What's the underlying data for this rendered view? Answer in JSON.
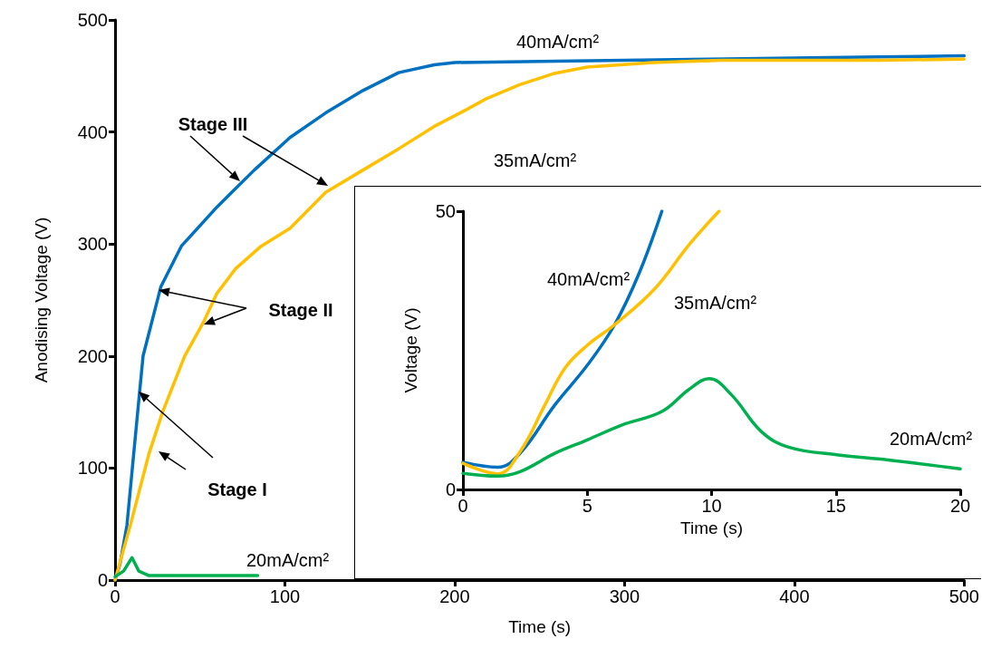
{
  "chart_data": [
    {
      "type": "line",
      "xlabel": "Time (s)",
      "ylabel": "Anodising Voltage (V)",
      "xlim": [
        0,
        500
      ],
      "xticks": [
        0,
        100,
        200,
        300,
        400,
        500
      ],
      "ylim": [
        0,
        500
      ],
      "yticks": [
        0,
        100,
        200,
        300,
        400,
        500
      ],
      "grid": false,
      "legend": false,
      "marker": "none",
      "line_style": "solid",
      "annotations": [
        "Stage III",
        "Stage II",
        "Stage I"
      ],
      "series": [
        {
          "name": "40mA/cm²",
          "color": "#0070c0",
          "x": [
            0,
            3,
            7,
            10,
            14.4,
            16.5,
            27,
            39,
            60,
            82,
            103,
            124,
            146,
            167,
            188,
            200,
            250,
            300,
            350,
            400,
            450,
            500
          ],
          "values": [
            0,
            15,
            49,
            97,
            167,
            200,
            262,
            298,
            333,
            366,
            395,
            417,
            437,
            453,
            460,
            462,
            463,
            464,
            465,
            466,
            467,
            468
          ]
        },
        {
          "name": "35mA/cm²",
          "color": "#ffc000",
          "x": [
            0,
            9,
            20,
            28,
            41,
            52,
            60,
            71,
            86,
            103,
            124,
            146,
            167,
            188,
            207,
            219,
            238,
            258,
            278,
            317,
            357,
            400,
            450,
            500
          ],
          "values": [
            0,
            49,
            113,
            150,
            200,
            230,
            256,
            278,
            298,
            314,
            346,
            366,
            385,
            405,
            420,
            430,
            442,
            452,
            458,
            462,
            464,
            464,
            464,
            465
          ]
        },
        {
          "name": "20mA/cm²",
          "color": "#00b050",
          "x": [
            0,
            5,
            10,
            14,
            20,
            84
          ],
          "values": [
            3,
            8,
            20,
            8,
            4,
            4
          ]
        }
      ]
    },
    {
      "type": "line",
      "xlabel": "Time (s)",
      "ylabel": "Voltage (V)",
      "xlim": [
        0,
        20
      ],
      "xticks": [
        0,
        5,
        10,
        15,
        20
      ],
      "ylim": [
        0,
        50
      ],
      "yticks": [
        0,
        50
      ],
      "grid": false,
      "legend": false,
      "marker": "none",
      "line_style": "solid",
      "series": [
        {
          "name": "40mA/cm²",
          "color": "#0070c0",
          "x": [
            0,
            1.4,
            2.3,
            3.7,
            5,
            6.1,
            7.1,
            8
          ],
          "values": [
            4.9,
            4.0,
            6.5,
            15.2,
            22.3,
            29.6,
            39,
            50
          ]
        },
        {
          "name": "35mA/cm²",
          "color": "#ffc000",
          "x": [
            0,
            1.4,
            2.3,
            3.3,
            4.1,
            5,
            6.1,
            7.7,
            9.1,
            10.3
          ],
          "values": [
            4.7,
            2.8,
            6.8,
            15.2,
            21.8,
            25.9,
            29.6,
            36,
            44,
            50
          ]
        },
        {
          "name": "20mA/cm²",
          "color": "#00b050",
          "x": [
            0,
            1.4,
            2.3,
            3.7,
            5,
            6.4,
            8,
            9.1,
            9.9,
            10.8,
            12,
            13.1,
            15.1,
            17.1,
            20
          ],
          "values": [
            2.9,
            2.4,
            3.2,
            6.5,
            8.9,
            11.6,
            14,
            18,
            19.9,
            17,
            10.4,
            7.6,
            6.2,
            5.3,
            3.7
          ]
        }
      ]
    }
  ]
}
